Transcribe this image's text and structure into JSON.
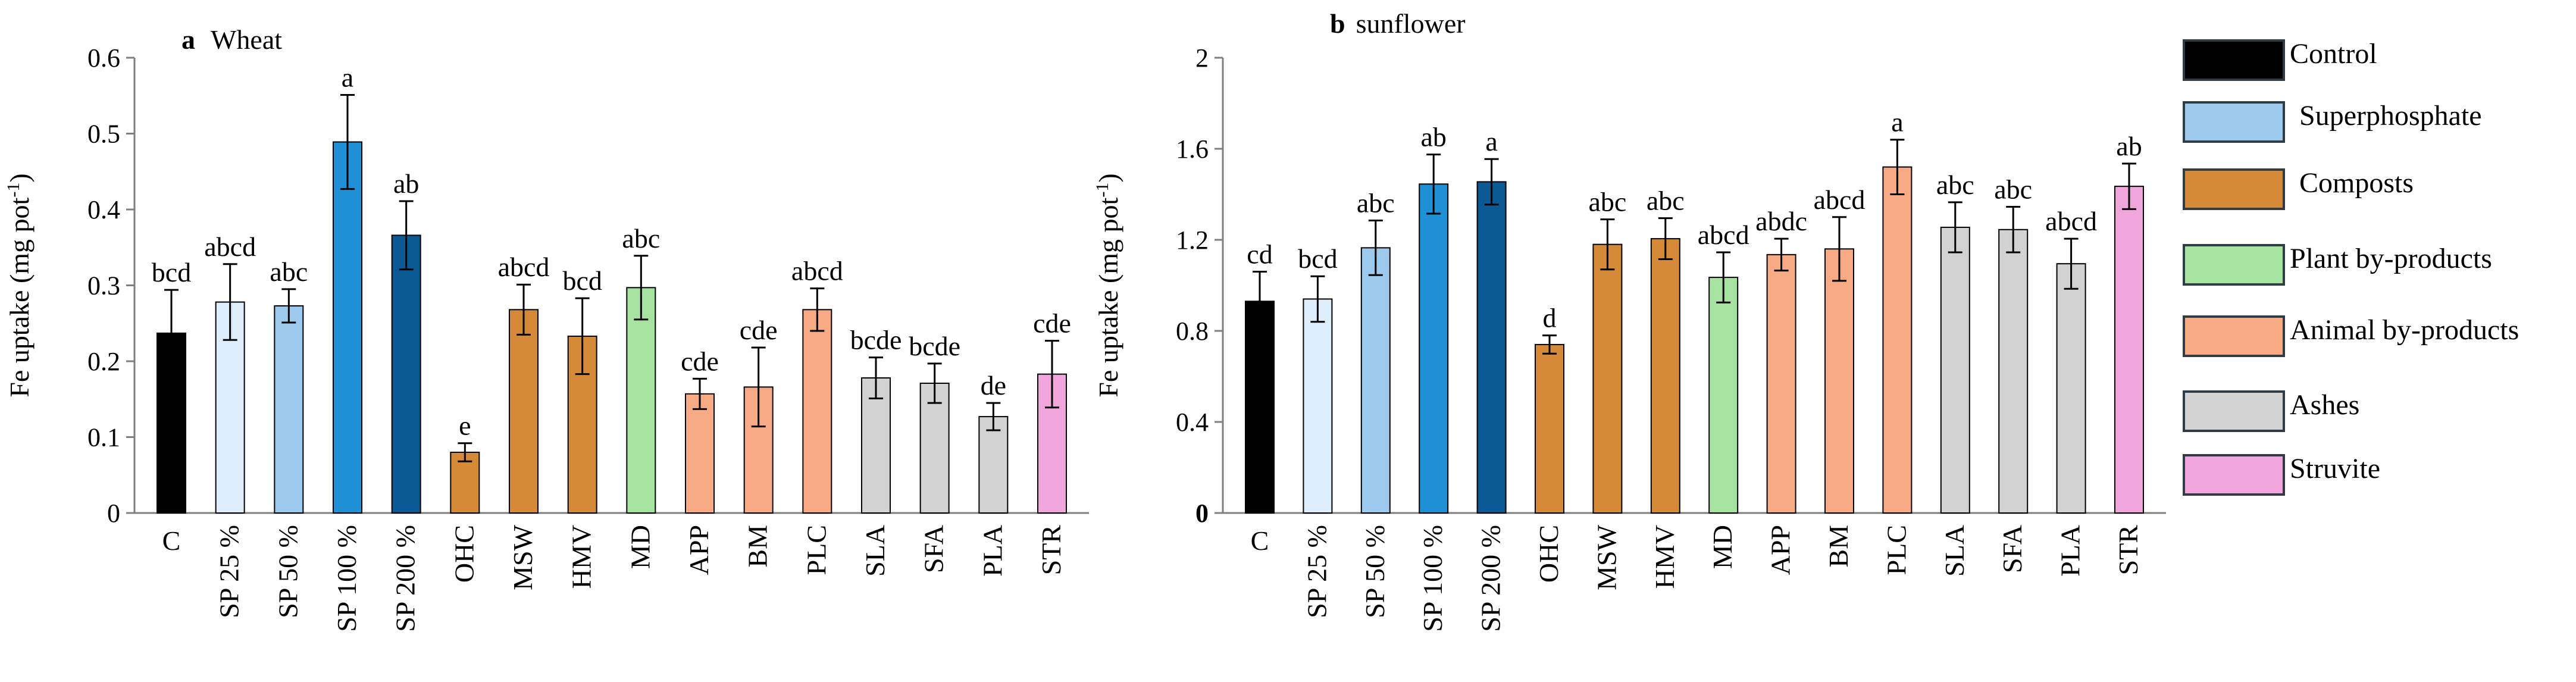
{
  "colors": {
    "control": "#000000",
    "sp25": "#ddeefa",
    "sp50": "#9dc9ec",
    "sp100": "#1f8fd6",
    "sp200": "#0b5a96",
    "compost": "#d58a3a",
    "plant": "#a6e3a0",
    "animal": "#f7aa84",
    "ash": "#d2d2d2",
    "struvite": "#f0a6dd"
  },
  "chart_data": [
    {
      "type": "bar",
      "panel_letter": "a",
      "title": "Wheat",
      "ylabel": "Fe uptake (mg pot⁻¹)",
      "ylim": [
        0,
        0.6
      ],
      "yticks": [
        "0",
        "0.1",
        "0.2",
        "0.3",
        "0.4",
        "0.5",
        "0.6"
      ],
      "categories": [
        "C",
        "SP 25 %",
        "SP 50 %",
        "SP 100 %",
        "SP 200 %",
        "OHC",
        "MSW",
        "HMV",
        "MD",
        "APP",
        "BM",
        "PLC",
        "SLA",
        "SFA",
        "PLA",
        "STR"
      ],
      "values": [
        0.237,
        0.278,
        0.273,
        0.489,
        0.366,
        0.08,
        0.268,
        0.233,
        0.297,
        0.157,
        0.166,
        0.268,
        0.178,
        0.171,
        0.127,
        0.183
      ],
      "errors": [
        0.057,
        0.05,
        0.022,
        0.062,
        0.045,
        0.012,
        0.033,
        0.05,
        0.042,
        0.02,
        0.052,
        0.028,
        0.027,
        0.026,
        0.018,
        0.044
      ],
      "letters": [
        "bcd",
        "abcd",
        "abc",
        "a",
        "ab",
        "e",
        "abcd",
        "bcd",
        "abc",
        "cde",
        "cde",
        "abcd",
        "bcde",
        "bcde",
        "de",
        "cde"
      ],
      "color_keys": [
        "control",
        "sp25",
        "sp50",
        "sp100",
        "sp200",
        "compost",
        "compost",
        "compost",
        "plant",
        "animal",
        "animal",
        "animal",
        "ash",
        "ash",
        "ash",
        "struvite"
      ]
    },
    {
      "type": "bar",
      "panel_letter": "b",
      "title": "sunflower",
      "ylabel": "Fe uptake (mg pot⁻¹)",
      "ylim": [
        0,
        2
      ],
      "yticks": [
        "0",
        "0.4",
        "0.8",
        "1.2",
        "1.6",
        "2"
      ],
      "categories": [
        "C",
        "SP 25 %",
        "SP 50 %",
        "SP 100 %",
        "SP 200 %",
        "OHC",
        "MSW",
        "HMV",
        "MD",
        "APP",
        "BM",
        "PLC",
        "SLA",
        "SFA",
        "PLA",
        "STR"
      ],
      "values": [
        0.93,
        0.94,
        1.165,
        1.445,
        1.455,
        0.74,
        1.18,
        1.205,
        1.035,
        1.135,
        1.16,
        1.52,
        1.255,
        1.245,
        1.095,
        1.435
      ],
      "errors": [
        0.13,
        0.1,
        0.12,
        0.13,
        0.1,
        0.04,
        0.11,
        0.09,
        0.11,
        0.07,
        0.14,
        0.12,
        0.11,
        0.1,
        0.11,
        0.1
      ],
      "letters": [
        "cd",
        "bcd",
        "abc",
        "ab",
        "a",
        "d",
        "abc",
        "abc",
        "abcd",
        "abdc",
        "abcd",
        "a",
        "abc",
        "abc",
        "abcd",
        "ab"
      ],
      "color_keys": [
        "control",
        "sp25",
        "sp50",
        "sp100",
        "sp200",
        "compost",
        "compost",
        "compost",
        "plant",
        "animal",
        "animal",
        "animal",
        "ash",
        "ash",
        "ash",
        "struvite"
      ]
    }
  ],
  "legend": {
    "items": [
      {
        "label": "Control",
        "color_key": "control"
      },
      {
        "label": "Superphosphate",
        "color_key": "sp50"
      },
      {
        "label": "Composts",
        "color_key": "compost"
      },
      {
        "label": "Plant by-products",
        "color_key": "plant"
      },
      {
        "label": "Animal by-products",
        "color_key": "animal"
      },
      {
        "label": "Ashes",
        "color_key": "ash"
      },
      {
        "label": "Struvite",
        "color_key": "struvite"
      }
    ]
  }
}
